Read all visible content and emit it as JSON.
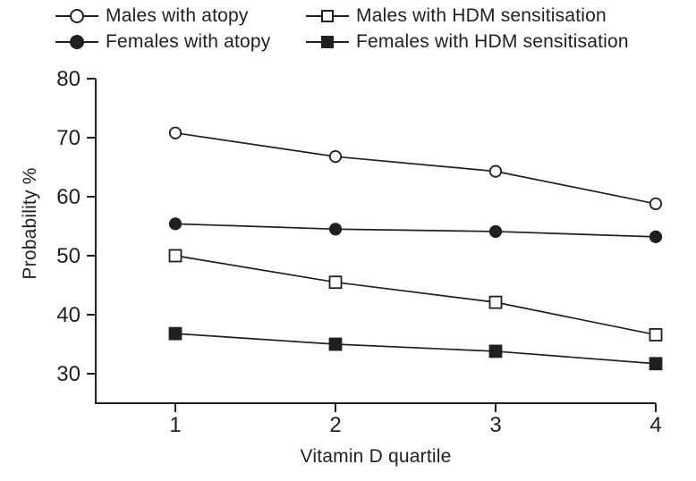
{
  "figure": {
    "ink_color": "#231f20",
    "background": "#ffffff"
  },
  "chart_data": {
    "type": "line",
    "title": "",
    "xlabel": "Vitamin D quartile",
    "ylabel": "Probability %",
    "x": [
      1,
      2,
      3,
      4
    ],
    "x_tick_labels": [
      "1",
      "2",
      "3",
      "4"
    ],
    "y_ticks": [
      30,
      40,
      50,
      60,
      70,
      80
    ],
    "ylim": [
      25,
      80
    ],
    "grid": false,
    "legend_position": "top",
    "series": [
      {
        "name": "Males with atopy",
        "marker": "open-circle",
        "values": [
          70.8,
          66.8,
          64.3,
          58.8
        ]
      },
      {
        "name": "Females with atopy",
        "marker": "filled-circle",
        "values": [
          55.4,
          54.5,
          54.1,
          53.2
        ]
      },
      {
        "name": "Males with HDM sensitisation",
        "marker": "open-square",
        "values": [
          50.0,
          45.5,
          42.1,
          36.6
        ]
      },
      {
        "name": "Females with HDM sensitisation",
        "marker": "filled-square",
        "values": [
          36.8,
          35.0,
          33.8,
          31.7
        ]
      }
    ]
  }
}
